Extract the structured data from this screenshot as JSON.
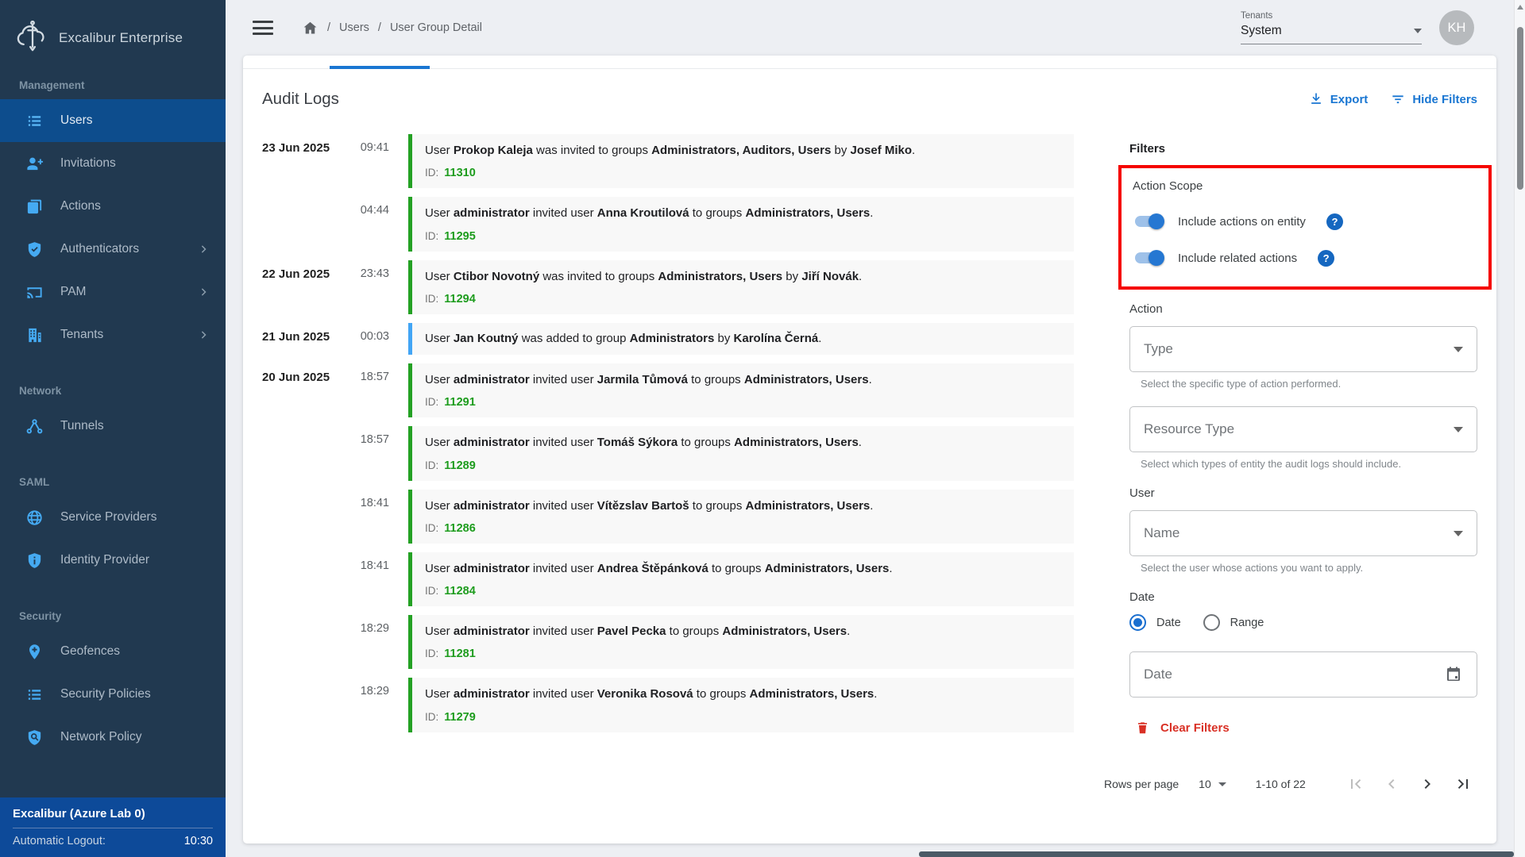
{
  "colors": {
    "accent_blue": "#1976d2",
    "log_green": "#24a124",
    "log_blue": "#42a5f5",
    "clear_red": "#d93025",
    "annotation_red": "#f50400",
    "sidebar_bg": "#213950",
    "sidebar_active_bg": "#0d4d8d",
    "footer_bg": "#0d4a99"
  },
  "sidebar": {
    "logo_title": "Excalibur Enterprise",
    "sections": [
      {
        "label": "Management",
        "items": [
          {
            "label": "Users",
            "icon": "list-icon",
            "active": true,
            "chevron": false
          },
          {
            "label": "Invitations",
            "icon": "person-add-icon",
            "active": false,
            "chevron": false
          },
          {
            "label": "Actions",
            "icon": "article-icon",
            "active": false,
            "chevron": false
          },
          {
            "label": "Authenticators",
            "icon": "shield-check-icon",
            "active": false,
            "chevron": true
          },
          {
            "label": "PAM",
            "icon": "cast-icon",
            "active": false,
            "chevron": true
          },
          {
            "label": "Tenants",
            "icon": "building-icon",
            "active": false,
            "chevron": true
          }
        ]
      },
      {
        "label": "Network",
        "items": [
          {
            "label": "Tunnels",
            "icon": "tunnels-icon",
            "active": false,
            "chevron": false
          }
        ]
      },
      {
        "label": "SAML",
        "items": [
          {
            "label": "Service Providers",
            "icon": "globe-icon",
            "active": false,
            "chevron": false
          },
          {
            "label": "Identity Provider",
            "icon": "shield-info-icon",
            "active": false,
            "chevron": false
          }
        ]
      },
      {
        "label": "Security",
        "items": [
          {
            "label": "Geofences",
            "icon": "pin-plus-icon",
            "active": false,
            "chevron": false
          },
          {
            "label": "Security Policies",
            "icon": "list-icon",
            "active": false,
            "chevron": false
          },
          {
            "label": "Network Policy",
            "icon": "shield-search-icon",
            "active": false,
            "chevron": false
          }
        ]
      }
    ],
    "footer": {
      "tenant": "Excalibur (Azure Lab 0)",
      "logout_label": "Automatic Logout:",
      "logout_time": "10:30"
    }
  },
  "topbar": {
    "breadcrumb": [
      "Users",
      "User Group Detail"
    ],
    "separator": "/",
    "tenants_label": "Tenants",
    "tenant_value": "System",
    "avatar_initials": "KH"
  },
  "audit": {
    "title": "Audit Logs",
    "export_label": "Export",
    "hide_filters_label": "Hide Filters",
    "id_label": "ID:"
  },
  "logs": [
    {
      "date": "23 Jun 2025",
      "time": "09:41",
      "color": "green",
      "id": "11310",
      "message": [
        {
          "t": "User ",
          "b": false
        },
        {
          "t": "Prokop Kaleja",
          "b": true
        },
        {
          "t": " was invited to groups ",
          "b": false
        },
        {
          "t": "Administrators, Auditors, Users",
          "b": true
        },
        {
          "t": " by ",
          "b": false
        },
        {
          "t": "Josef Miko",
          "b": true
        },
        {
          "t": ".",
          "b": false
        }
      ]
    },
    {
      "date": "",
      "time": "04:44",
      "color": "green",
      "id": "11295",
      "message": [
        {
          "t": "User ",
          "b": false
        },
        {
          "t": "administrator",
          "b": true
        },
        {
          "t": " invited user ",
          "b": false
        },
        {
          "t": "Anna Kroutilová",
          "b": true
        },
        {
          "t": " to groups ",
          "b": false
        },
        {
          "t": "Administrators, Users",
          "b": true
        },
        {
          "t": ".",
          "b": false
        }
      ]
    },
    {
      "date": "22 Jun 2025",
      "time": "23:43",
      "color": "green",
      "id": "11294",
      "message": [
        {
          "t": "User ",
          "b": false
        },
        {
          "t": "Ctibor Novotný",
          "b": true
        },
        {
          "t": " was invited to groups ",
          "b": false
        },
        {
          "t": "Administrators, Users",
          "b": true
        },
        {
          "t": " by ",
          "b": false
        },
        {
          "t": "Jiří Novák",
          "b": true
        },
        {
          "t": ".",
          "b": false
        }
      ]
    },
    {
      "date": "21 Jun 2025",
      "time": "00:03",
      "color": "blue",
      "id": "",
      "message": [
        {
          "t": "User ",
          "b": false
        },
        {
          "t": "Jan Koutný",
          "b": true
        },
        {
          "t": " was added to group ",
          "b": false
        },
        {
          "t": "Administrators",
          "b": true
        },
        {
          "t": " by ",
          "b": false
        },
        {
          "t": "Karolína Černá",
          "b": true
        },
        {
          "t": ".",
          "b": false
        }
      ]
    },
    {
      "date": "20 Jun 2025",
      "time": "18:57",
      "color": "green",
      "id": "11291",
      "message": [
        {
          "t": "User ",
          "b": false
        },
        {
          "t": "administrator",
          "b": true
        },
        {
          "t": " invited user ",
          "b": false
        },
        {
          "t": "Jarmila Tůmová",
          "b": true
        },
        {
          "t": " to groups ",
          "b": false
        },
        {
          "t": "Administrators, Users",
          "b": true
        },
        {
          "t": ".",
          "b": false
        }
      ]
    },
    {
      "date": "",
      "time": "18:57",
      "color": "green",
      "id": "11289",
      "message": [
        {
          "t": "User ",
          "b": false
        },
        {
          "t": "administrator",
          "b": true
        },
        {
          "t": " invited user ",
          "b": false
        },
        {
          "t": "Tomáš Sýkora",
          "b": true
        },
        {
          "t": " to groups ",
          "b": false
        },
        {
          "t": "Administrators, Users",
          "b": true
        },
        {
          "t": ".",
          "b": false
        }
      ]
    },
    {
      "date": "",
      "time": "18:41",
      "color": "green",
      "id": "11286",
      "message": [
        {
          "t": "User ",
          "b": false
        },
        {
          "t": "administrator",
          "b": true
        },
        {
          "t": " invited user ",
          "b": false
        },
        {
          "t": "Vítězslav Bartoš",
          "b": true
        },
        {
          "t": " to groups ",
          "b": false
        },
        {
          "t": "Administrators, Users",
          "b": true
        },
        {
          "t": ".",
          "b": false
        }
      ]
    },
    {
      "date": "",
      "time": "18:41",
      "color": "green",
      "id": "11284",
      "message": [
        {
          "t": "User ",
          "b": false
        },
        {
          "t": "administrator",
          "b": true
        },
        {
          "t": " invited user ",
          "b": false
        },
        {
          "t": "Andrea Štěpánková",
          "b": true
        },
        {
          "t": " to groups ",
          "b": false
        },
        {
          "t": "Administrators, Users",
          "b": true
        },
        {
          "t": ".",
          "b": false
        }
      ]
    },
    {
      "date": "",
      "time": "18:29",
      "color": "green",
      "id": "11281",
      "message": [
        {
          "t": "User ",
          "b": false
        },
        {
          "t": "administrator",
          "b": true
        },
        {
          "t": " invited user ",
          "b": false
        },
        {
          "t": "Pavel Pecka",
          "b": true
        },
        {
          "t": " to groups ",
          "b": false
        },
        {
          "t": "Administrators, Users",
          "b": true
        },
        {
          "t": ".",
          "b": false
        }
      ]
    },
    {
      "date": "",
      "time": "18:29",
      "color": "green",
      "id": "11279",
      "message": [
        {
          "t": "User ",
          "b": false
        },
        {
          "t": "administrator",
          "b": true
        },
        {
          "t": " invited user ",
          "b": false
        },
        {
          "t": "Veronika Rosová",
          "b": true
        },
        {
          "t": " to groups ",
          "b": false
        },
        {
          "t": "Administrators, Users",
          "b": true
        },
        {
          "t": ".",
          "b": false
        }
      ]
    }
  ],
  "filters": {
    "title": "Filters",
    "action_scope": {
      "label": "Action Scope",
      "toggles": [
        {
          "label": "Include actions on entity",
          "on": true
        },
        {
          "label": "Include related actions",
          "on": true
        }
      ],
      "help_glyph": "?"
    },
    "action_label": "Action",
    "type_placeholder": "Type",
    "type_helper": "Select the specific type of action performed.",
    "resource_placeholder": "Resource Type",
    "resource_helper": "Select which types of entity the audit logs should include.",
    "user_label": "User",
    "name_placeholder": "Name",
    "user_helper": "Select the user whose actions you want to apply.",
    "date_label": "Date",
    "date_mode_options": [
      {
        "label": "Date",
        "selected": true
      },
      {
        "label": "Range",
        "selected": false
      }
    ],
    "date_placeholder": "Date",
    "clear_label": "Clear Filters"
  },
  "pagination": {
    "rows_per_page_label": "Rows per page",
    "rows_per_page_value": "10",
    "range_label": "1-10 of 22"
  }
}
